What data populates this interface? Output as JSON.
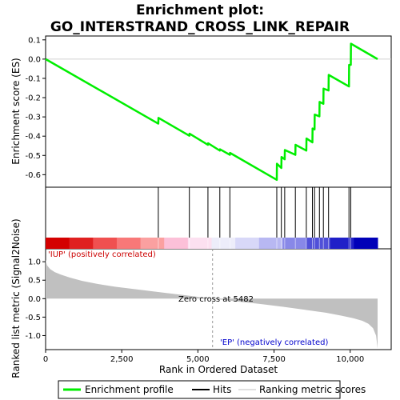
{
  "chart_data": [
    {
      "type": "line",
      "title_line1": "Enrichment plot:",
      "title_line2": "GO_INTERSTRAND_CROSS_LINK_REPAIR",
      "ylabel": "Enrichment score (ES)",
      "ylim": [
        -0.665,
        0.12
      ],
      "yticks": [
        0.1,
        0.0,
        -0.1,
        -0.2,
        -0.3,
        -0.4,
        -0.5,
        -0.6
      ],
      "ytick_labels": [
        "0.1",
        "0.0",
        "-0.1",
        "-0.2",
        "-0.3",
        "-0.4",
        "-0.5",
        "-0.6"
      ],
      "grid": false,
      "series": [
        {
          "color": "#00ee00",
          "x": [
            0,
            3700,
            3705,
            4720,
            4725,
            5330,
            5335,
            5720,
            5725,
            6050,
            6055,
            7590,
            7595,
            7740,
            7745,
            7850,
            7855,
            8200,
            8205,
            8560,
            8565,
            8760,
            8765,
            8830,
            8835,
            8990,
            8995,
            9120,
            9125,
            9290,
            9295,
            9960,
            9965,
            10020,
            10025,
            10900
          ],
          "y": [
            0.0,
            -0.335,
            -0.305,
            -0.398,
            -0.387,
            -0.445,
            -0.437,
            -0.475,
            -0.468,
            -0.497,
            -0.487,
            -0.627,
            -0.543,
            -0.565,
            -0.508,
            -0.52,
            -0.472,
            -0.497,
            -0.445,
            -0.475,
            -0.412,
            -0.432,
            -0.36,
            -0.365,
            -0.288,
            -0.297,
            -0.222,
            -0.232,
            -0.153,
            -0.163,
            -0.082,
            -0.142,
            -0.03,
            -0.03,
            0.08,
            0.0
          ]
        }
      ]
    },
    {
      "type": "rug",
      "hits": [
        3700,
        4720,
        5330,
        5720,
        6050,
        7590,
        7740,
        7850,
        8200,
        8560,
        8760,
        8830,
        8990,
        9120,
        9290,
        9960,
        10020
      ],
      "color_band": [
        "#d40000",
        "#e02020",
        "#f05050",
        "#f87878",
        "#fba0a0",
        "#fcc0d8",
        "#fce0f0",
        "#ededfa",
        "#d8d8f8",
        "#b8b8f2",
        "#8888e8",
        "#5050d8",
        "#2020c8",
        "#0000b8"
      ]
    },
    {
      "type": "area",
      "xlabel": "Rank in Ordered Dataset",
      "ylabel": "Ranked list metric (Signal2Noise)",
      "xlim": [
        0,
        10900
      ],
      "ylim": [
        -1.38,
        1.35
      ],
      "xticks": [
        0,
        2500,
        5000,
        7500,
        10000
      ],
      "xtick_labels": [
        "0",
        "2,500",
        "5,000",
        "7,500",
        "10,000"
      ],
      "yticks": [
        1.0,
        0.5,
        0.0,
        -0.5,
        -1.0
      ],
      "ytick_labels": [
        "1.0",
        "0.5",
        "0.0",
        "-0.5",
        "-1.0"
      ],
      "fill_color": "#c0c0c0",
      "x": [
        0,
        50,
        150,
        300,
        500,
        800,
        1200,
        1700,
        2300,
        3000,
        3800,
        4600,
        5482,
        6200,
        7000,
        7800,
        8500,
        9200,
        9700,
        10100,
        10400,
        10600,
        10750,
        10850,
        10900
      ],
      "values": [
        1.05,
        0.9,
        0.8,
        0.72,
        0.65,
        0.57,
        0.48,
        0.4,
        0.32,
        0.25,
        0.17,
        0.09,
        0.0,
        -0.07,
        -0.14,
        -0.22,
        -0.3,
        -0.38,
        -0.46,
        -0.53,
        -0.6,
        -0.68,
        -0.8,
        -1.0,
        -1.35
      ],
      "annotations": {
        "up": "'IUP' (positively correlated)",
        "down": "'EP' (negatively correlated)",
        "zero_cross": "Zero cross at 5482",
        "zero_cross_x": 5482
      }
    }
  ],
  "legend": {
    "items": [
      {
        "label": "Enrichment profile",
        "color": "#00ee00"
      },
      {
        "label": "Hits",
        "color": "#000000"
      },
      {
        "label": "Ranking metric scores",
        "color": "#c0c0c0"
      }
    ]
  }
}
